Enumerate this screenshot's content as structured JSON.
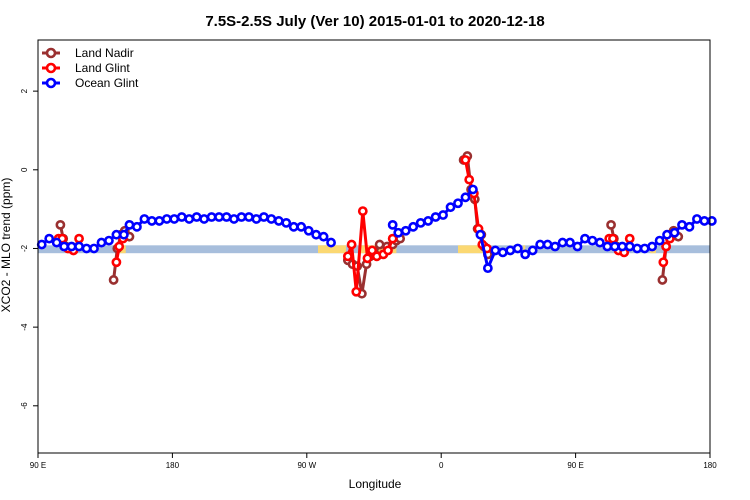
{
  "chart_data": {
    "type": "line",
    "title": "7.5S-2.5S July (Ver 10)   2015-01-01 to 2020-12-18",
    "xlabel": "Longitude",
    "ylabel": "XCO2 - MLO trend (ppm)",
    "xlim": [
      90,
      450
    ],
    "ylim": [
      -7.2,
      3.3
    ],
    "x_ticks": [
      {
        "value": 90,
        "label": "90 E"
      },
      {
        "value": 162,
        "label": "180"
      },
      {
        "value": 234,
        "label": "90 W"
      },
      {
        "value": 306,
        "label": "0"
      },
      {
        "value": 378,
        "label": "90 E"
      },
      {
        "value": 450,
        "label": "180"
      }
    ],
    "y_ticks": [
      {
        "value": 2,
        "label": "2"
      },
      {
        "value": 0,
        "label": "0"
      },
      {
        "value": -2,
        "label": "-2"
      },
      {
        "value": -4,
        "label": "-4"
      },
      {
        "value": -6,
        "label": "-6"
      }
    ],
    "legend_position": "top-left",
    "band": {
      "y_min": -2.12,
      "y_max": -1.92,
      "color": "#a7bedc",
      "highlight_color": "#fbd872",
      "highlights": [
        [
          133,
          137
        ],
        [
          240,
          255
        ],
        [
          262,
          282
        ],
        [
          315,
          330
        ],
        [
          350,
          351
        ],
        [
          418,
          421
        ]
      ]
    },
    "series": [
      {
        "name": "Land Nadir",
        "color": "#9a3030",
        "segments": [
          [
            [
              102,
              -1.4
            ],
            [
              103.5,
              -1.75
            ],
            [
              105,
              -1.95
            ],
            [
              107,
              -2.0
            ]
          ],
          [
            [
              130.5,
              -2.8
            ],
            [
              132.5,
              -2.0
            ],
            [
              134.5,
              -1.65
            ],
            [
              136.5,
              -1.55
            ],
            [
              139,
              -1.7
            ]
          ],
          [
            [
              256,
              -2.3
            ],
            [
              258.5,
              -2.4
            ],
            [
              261,
              -2.45
            ],
            [
              263.5,
              -3.15
            ],
            [
              266,
              -2.4
            ],
            [
              268,
              -2.2
            ],
            [
              270.5,
              -2.15
            ],
            [
              273,
              -1.9
            ],
            [
              277,
              -1.95
            ],
            [
              280,
              -1.9
            ],
            [
              282,
              -1.8
            ],
            [
              284,
              -1.75
            ]
          ],
          [
            [
              318,
              0.25
            ],
            [
              320,
              0.35
            ],
            [
              322,
              -0.5
            ],
            [
              324,
              -0.75
            ],
            [
              325.5,
              -1.5
            ],
            [
              327.5,
              -1.65
            ],
            [
              329,
              -1.95
            ],
            [
              331,
              -2.15
            ]
          ],
          [
            [
              397,
              -1.4
            ],
            [
              398.5,
              -1.75
            ],
            [
              400,
              -1.95
            ],
            [
              402,
              -2.0
            ]
          ],
          [
            [
              424.5,
              -2.8
            ],
            [
              426.5,
              -1.95
            ],
            [
              428.5,
              -1.65
            ],
            [
              430.5,
              -1.55
            ],
            [
              433,
              -1.7
            ]
          ]
        ]
      },
      {
        "name": "Land Glint",
        "color": "#ff0000",
        "segments": [
          [
            [
              101,
              -1.75
            ],
            [
              103,
              -1.75
            ],
            [
              106,
              -2.0
            ],
            [
              109,
              -2.05
            ],
            [
              112,
              -1.75
            ]
          ],
          [
            [
              132,
              -2.35
            ],
            [
              133.5,
              -1.95
            ],
            [
              135.5,
              -1.75
            ]
          ],
          [
            [
              256,
              -2.2
            ],
            [
              258,
              -1.9
            ],
            [
              260.5,
              -3.1
            ],
            [
              264,
              -1.05
            ],
            [
              266.5,
              -2.25
            ],
            [
              269,
              -2.05
            ],
            [
              271.5,
              -2.2
            ],
            [
              275,
              -2.15
            ],
            [
              277.5,
              -2.05
            ],
            [
              280,
              -1.75
            ]
          ],
          [
            [
              319,
              0.25
            ],
            [
              321,
              -0.25
            ],
            [
              323.5,
              -0.6
            ],
            [
              326,
              -1.5
            ],
            [
              328,
              -1.9
            ],
            [
              330.5,
              -2.0
            ]
          ],
          [
            [
              396,
              -1.75
            ],
            [
              398,
              -1.75
            ],
            [
              401,
              -2.05
            ],
            [
              404,
              -2.1
            ],
            [
              407,
              -1.75
            ]
          ],
          [
            [
              425,
              -2.35
            ],
            [
              426.5,
              -1.95
            ],
            [
              428.5,
              -1.75
            ]
          ]
        ]
      },
      {
        "name": "Ocean Glint",
        "color": "#0000ff",
        "segments": [
          [
            [
              92,
              -1.9
            ],
            [
              96,
              -1.75
            ],
            [
              100,
              -1.85
            ],
            [
              104,
              -1.95
            ],
            [
              108,
              -1.95
            ],
            [
              112,
              -1.95
            ],
            [
              116,
              -2.0
            ],
            [
              120,
              -2.0
            ],
            [
              124,
              -1.85
            ],
            [
              128,
              -1.8
            ],
            [
              132,
              -1.65
            ],
            [
              136,
              -1.65
            ],
            [
              139,
              -1.4
            ],
            [
              143,
              -1.45
            ],
            [
              147,
              -1.25
            ],
            [
              151,
              -1.3
            ],
            [
              155,
              -1.3
            ],
            [
              159,
              -1.25
            ],
            [
              163,
              -1.25
            ],
            [
              167,
              -1.2
            ],
            [
              171,
              -1.25
            ],
            [
              175,
              -1.2
            ],
            [
              179,
              -1.25
            ],
            [
              183,
              -1.2
            ],
            [
              187,
              -1.2
            ],
            [
              191,
              -1.2
            ],
            [
              195,
              -1.25
            ],
            [
              199,
              -1.2
            ],
            [
              203,
              -1.2
            ],
            [
              207,
              -1.25
            ],
            [
              211,
              -1.2
            ],
            [
              215,
              -1.25
            ],
            [
              219,
              -1.3
            ],
            [
              223,
              -1.35
            ],
            [
              227,
              -1.45
            ],
            [
              231,
              -1.45
            ],
            [
              235,
              -1.55
            ],
            [
              239,
              -1.65
            ],
            [
              243,
              -1.7
            ],
            [
              247,
              -1.85
            ]
          ],
          [
            [
              280,
              -1.4
            ],
            [
              283,
              -1.6
            ],
            [
              287,
              -1.55
            ],
            [
              291,
              -1.45
            ],
            [
              295,
              -1.35
            ],
            [
              299,
              -1.3
            ],
            [
              303,
              -1.2
            ],
            [
              307,
              -1.15
            ],
            [
              311,
              -0.95
            ],
            [
              315,
              -0.85
            ],
            [
              319,
              -0.7
            ],
            [
              323,
              -0.5
            ]
          ],
          [
            [
              327,
              -1.65
            ],
            [
              331,
              -2.5
            ],
            [
              335,
              -2.05
            ],
            [
              339,
              -2.1
            ],
            [
              343,
              -2.05
            ],
            [
              347,
              -2.0
            ],
            [
              351,
              -2.15
            ],
            [
              355,
              -2.05
            ],
            [
              359,
              -1.9
            ],
            [
              363,
              -1.9
            ],
            [
              367,
              -1.95
            ],
            [
              371,
              -1.85
            ],
            [
              375,
              -1.85
            ],
            [
              379,
              -1.95
            ],
            [
              383,
              -1.75
            ],
            [
              387,
              -1.8
            ],
            [
              391,
              -1.85
            ],
            [
              395,
              -1.95
            ],
            [
              399,
              -1.95
            ],
            [
              403,
              -1.95
            ],
            [
              407,
              -1.95
            ],
            [
              411,
              -2.0
            ],
            [
              415,
              -2.0
            ],
            [
              419,
              -1.95
            ],
            [
              423,
              -1.8
            ],
            [
              427,
              -1.65
            ],
            [
              431,
              -1.6
            ],
            [
              435,
              -1.4
            ],
            [
              439,
              -1.45
            ],
            [
              443,
              -1.25
            ],
            [
              447,
              -1.3
            ],
            [
              451,
              -1.3
            ]
          ]
        ]
      }
    ]
  }
}
